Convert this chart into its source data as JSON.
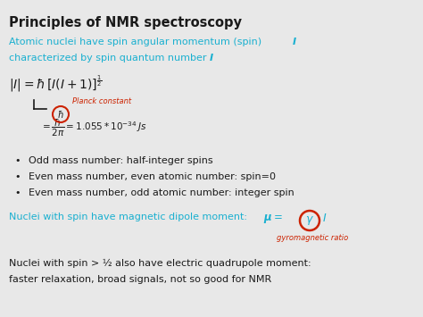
{
  "bg_color": "#e8e8e8",
  "title": "Principles of NMR spectroscopy",
  "title_color": "#1a1a1a",
  "title_fontsize": 11,
  "cyan": "#1ab0d0",
  "black": "#1a1a1a",
  "red": "#cc2200",
  "bullet1": "Odd mass number: half-integer spins",
  "bullet2": "Even mass number, even atomic number: spin=0",
  "bullet3": "Even mass number, odd atomic number: integer spin",
  "gyro_label": "gyromagnetic ratio",
  "bottom_text1": "Nuclei with spin > ½ also have electric quadrupole moment:",
  "bottom_text2": "faster relaxation, broad signals, not so good for NMR"
}
